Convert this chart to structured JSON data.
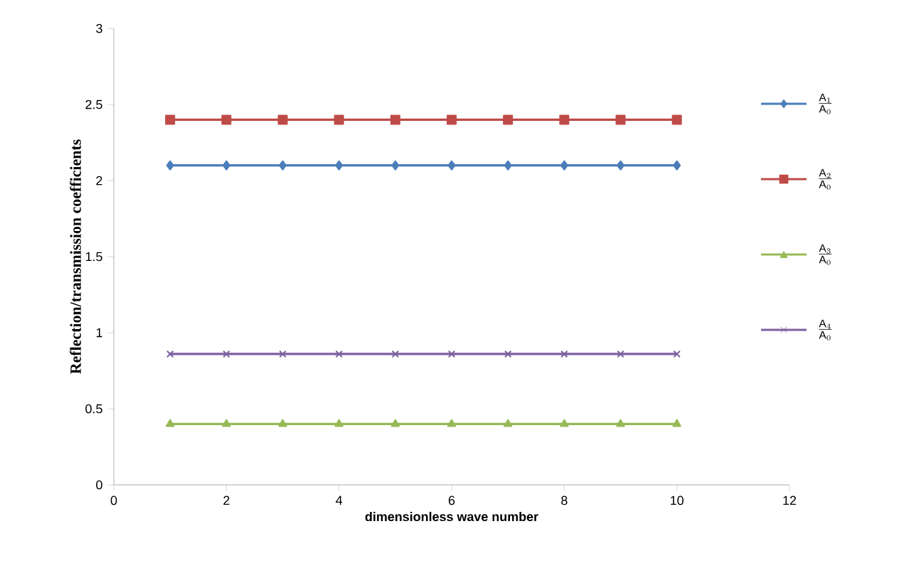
{
  "chart_data": {
    "type": "line",
    "xlabel": "dimensionless wave number",
    "ylabel": "Reflection/transmission coefficients",
    "x": [
      1,
      2,
      3,
      4,
      5,
      6,
      7,
      8,
      9,
      10
    ],
    "series": [
      {
        "name": "\\frac{\\mathrm{A}_1}{\\mathrm{A}_0}",
        "color": "#4a7ebb",
        "marker": "diamond",
        "values": [
          2.1,
          2.1,
          2.1,
          2.1,
          2.1,
          2.1,
          2.1,
          2.1,
          2.1,
          2.1
        ]
      },
      {
        "name": "\\frac{\\mathrm{A}_2}{\\mathrm{A}_0}",
        "color": "#be4b48",
        "marker": "square",
        "values": [
          2.4,
          2.4,
          2.4,
          2.4,
          2.4,
          2.4,
          2.4,
          2.4,
          2.4,
          2.4
        ]
      },
      {
        "name": "\\frac{\\mathrm{A}_3}{\\mathrm{A}_0}",
        "color": "#98b954",
        "marker": "triangle",
        "values": [
          0.4,
          0.4,
          0.4,
          0.4,
          0.4,
          0.4,
          0.4,
          0.4,
          0.4,
          0.4
        ]
      },
      {
        "name": "\\frac{\\mathrm{A}_4}{\\mathrm{A}_0}",
        "color": "#7d60a0",
        "marker": "cross",
        "values": [
          0.86,
          0.86,
          0.86,
          0.86,
          0.86,
          0.86,
          0.86,
          0.86,
          0.86,
          0.86
        ]
      }
    ],
    "xlim": [
      0,
      12
    ],
    "xticks": [
      0,
      2,
      4,
      6,
      8,
      10,
      12
    ],
    "ylim": [
      0,
      3
    ],
    "yticks": [
      0,
      0.5,
      1,
      1.5,
      2,
      2.5,
      3
    ],
    "grid": false,
    "legend": "right",
    "line_style": "solid"
  }
}
